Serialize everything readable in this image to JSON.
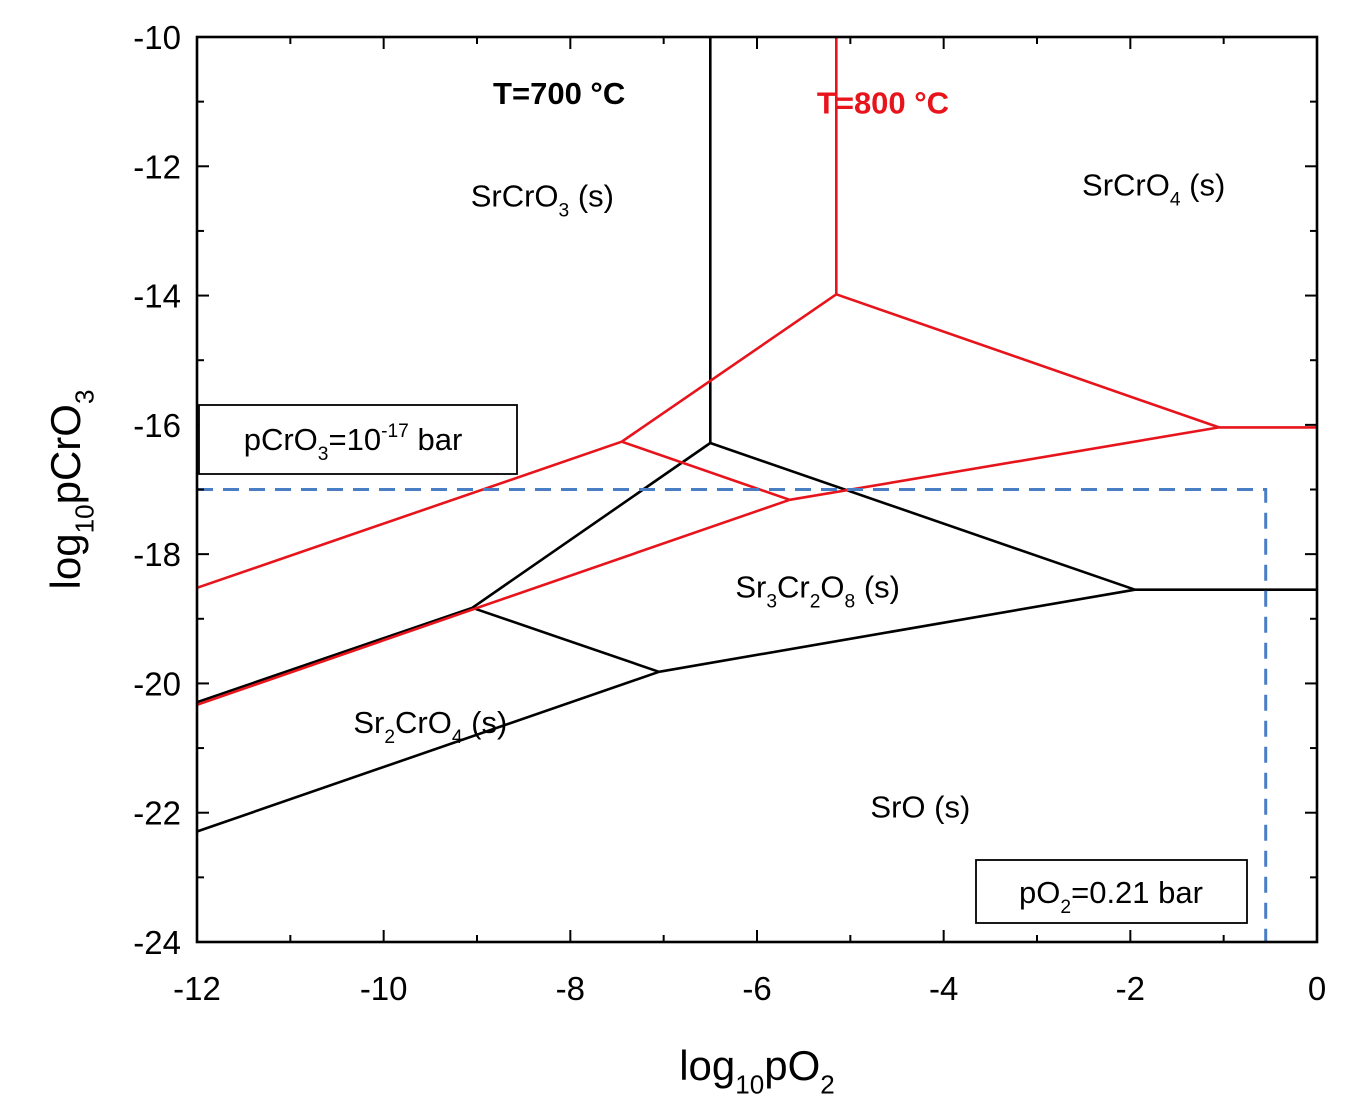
{
  "chart_data": {
    "type": "line",
    "title": "",
    "xlabel": "log10pO2",
    "ylabel": "log10pCrO3",
    "xlabel_parts": {
      "main": "log",
      "sub": "10",
      "main2": "pO",
      "sub2": "2"
    },
    "ylabel_parts": {
      "main": "log",
      "sub": "10",
      "main2": "pCrO",
      "sub2": "3"
    },
    "xlim": [
      -12,
      0
    ],
    "ylim": [
      -24,
      -10
    ],
    "xticks": [
      -12,
      -10,
      -8,
      -6,
      -4,
      -2,
      0
    ],
    "yticks": [
      -10,
      -12,
      -14,
      -16,
      -18,
      -20,
      -22,
      -24
    ],
    "xtick_labels": [
      "-12",
      "-10",
      "-8",
      "-6",
      "-4",
      "-2",
      "0"
    ],
    "ytick_labels": [
      "-10",
      "-12",
      "-14",
      "-16",
      "-18",
      "-20",
      "-22",
      "-24"
    ],
    "grid": false,
    "series": [
      {
        "name": "T=700 °C",
        "color": "#000000",
        "segments": [
          [
            [
              -6.5,
              -10
            ],
            [
              -6.5,
              -16.28
            ]
          ],
          [
            [
              -6.5,
              -16.28
            ],
            [
              -9.05,
              -18.83
            ]
          ],
          [
            [
              -6.5,
              -16.28
            ],
            [
              -1.95,
              -18.55
            ]
          ],
          [
            [
              -1.95,
              -18.55
            ],
            [
              0,
              -18.55
            ]
          ],
          [
            [
              -9.05,
              -18.83
            ],
            [
              -12,
              -20.29
            ]
          ],
          [
            [
              -9.05,
              -18.83
            ],
            [
              -7.05,
              -19.82
            ]
          ],
          [
            [
              -7.05,
              -19.82
            ],
            [
              -1.95,
              -18.55
            ]
          ],
          [
            [
              -7.05,
              -19.82
            ],
            [
              -12,
              -22.29
            ]
          ]
        ]
      },
      {
        "name": "T=800 °C",
        "color": "#e8141c",
        "segments": [
          [
            [
              -5.15,
              -10
            ],
            [
              -5.15,
              -13.98
            ]
          ],
          [
            [
              -5.15,
              -13.98
            ],
            [
              -7.45,
              -16.26
            ]
          ],
          [
            [
              -5.15,
              -13.98
            ],
            [
              -1.05,
              -16.04
            ]
          ],
          [
            [
              -1.05,
              -16.04
            ],
            [
              0,
              -16.04
            ]
          ],
          [
            [
              -7.45,
              -16.26
            ],
            [
              -12,
              -18.52
            ]
          ],
          [
            [
              -7.45,
              -16.26
            ],
            [
              -5.65,
              -17.16
            ]
          ],
          [
            [
              -5.65,
              -17.16
            ],
            [
              -1.05,
              -16.04
            ]
          ],
          [
            [
              -5.65,
              -17.16
            ],
            [
              -12,
              -20.33
            ]
          ]
        ]
      }
    ],
    "reference_lines": [
      {
        "color": "#4a7ec4",
        "style": "dashed",
        "points": [
          [
            -12,
            -17
          ],
          [
            -0.55,
            -17
          ],
          [
            -0.55,
            -24
          ]
        ]
      }
    ],
    "region_labels": [
      {
        "formula": [
          [
            "SrCrO",
            ""
          ],
          [
            "3",
            "sub"
          ],
          [
            " (s)",
            ""
          ]
        ],
        "x": -8.3,
        "y": -12.45
      },
      {
        "formula": [
          [
            "SrCrO",
            ""
          ],
          [
            "4",
            "sub"
          ],
          [
            " (s)",
            ""
          ]
        ],
        "x": -1.75,
        "y": -12.28
      },
      {
        "formula": [
          [
            "Sr",
            ""
          ],
          [
            "3",
            "sub"
          ],
          [
            "Cr",
            ""
          ],
          [
            "2",
            "sub"
          ],
          [
            "O",
            ""
          ],
          [
            "8",
            "sub"
          ],
          [
            " (s)",
            ""
          ]
        ],
        "x": -5.35,
        "y": -18.5
      },
      {
        "formula": [
          [
            "Sr",
            ""
          ],
          [
            "2",
            "sub"
          ],
          [
            "CrO",
            ""
          ],
          [
            "4",
            "sub"
          ],
          [
            " (s)",
            ""
          ]
        ],
        "x": -9.5,
        "y": -20.6
      },
      {
        "formula": [
          [
            "SrO (s)",
            ""
          ]
        ],
        "x": -4.25,
        "y": -21.9
      }
    ],
    "temperature_labels": [
      {
        "text": "T=700 °C",
        "color": "#000000",
        "x": -8.12,
        "y": -10.85
      },
      {
        "text": "T=800 °C",
        "color": "#e8141c",
        "x": -4.65,
        "y": -11.0
      }
    ],
    "annotation_boxes": [
      {
        "name": "pcro3-box",
        "parts": [
          [
            "pCrO",
            ""
          ],
          [
            "3",
            "sub"
          ],
          [
            "=10",
            ""
          ],
          [
            "-17",
            "sup"
          ],
          [
            " bar",
            ""
          ]
        ]
      },
      {
        "name": "po2-box",
        "parts": [
          [
            "pO",
            ""
          ],
          [
            "2",
            "sub"
          ],
          [
            "=0.21 bar",
            ""
          ]
        ]
      }
    ]
  }
}
